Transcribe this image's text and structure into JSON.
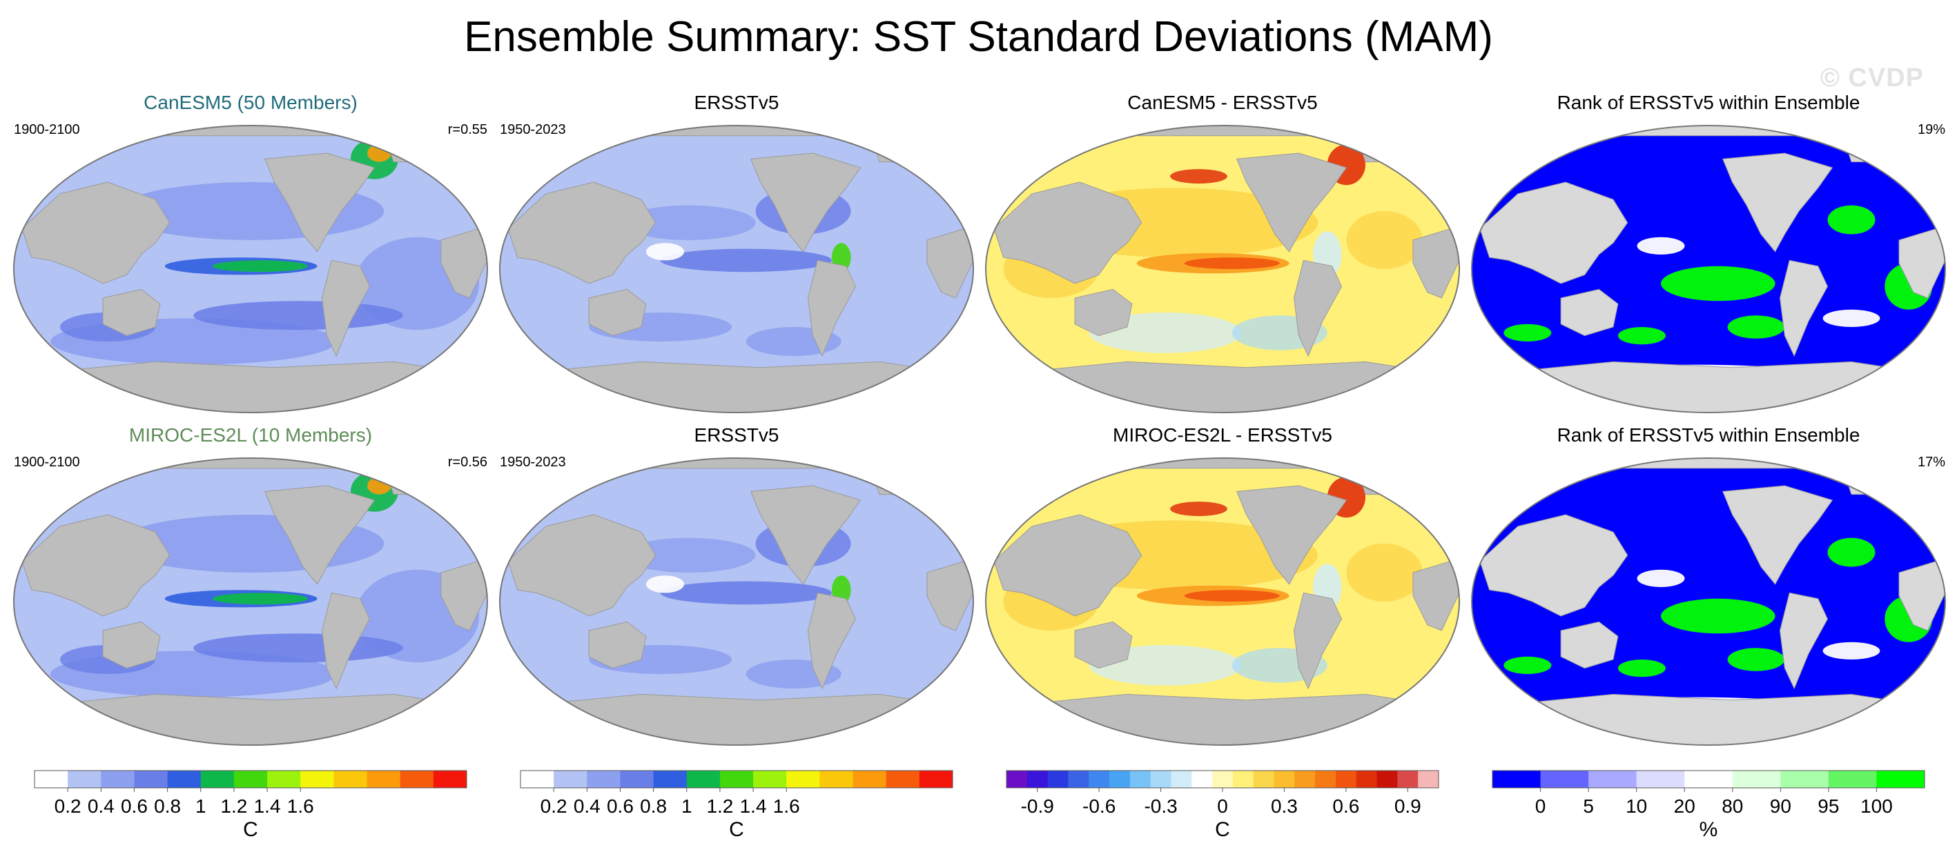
{
  "title": "Ensemble Summary: SST Standard Deviations (MAM)",
  "watermark": "© CVDP",
  "colors": {
    "land": "#bdbdbd",
    "ocean_bg": "#ffffff",
    "model1_title": "#1f6b7a",
    "model2_title": "#5e8c58",
    "std_levels": [
      "#ffffff",
      "#b3c3f3",
      "#8da0ef",
      "#6a7ee8",
      "#2f5fe0",
      "#0db74a",
      "#42d60d",
      "#9df20c",
      "#f5f50b",
      "#fbc70b",
      "#fb9b0b",
      "#f55b0b",
      "#f5160b"
    ],
    "diff_levels": [
      "#6a0fc7",
      "#3a14d9",
      "#2a3ae0",
      "#3b63e6",
      "#3f86ee",
      "#47a4f2",
      "#77c2f7",
      "#a9d9f9",
      "#d2ecfa",
      "#ffffff",
      "#fff9b8",
      "#fff07a",
      "#fcd64a",
      "#fbbc2e",
      "#f99b1c",
      "#f67a14",
      "#f0540e",
      "#e0300a",
      "#c91208",
      "#d94b4b",
      "#f5b6b6"
    ],
    "rank_levels": [
      "#0000ff",
      "#6464ff",
      "#a9a9ff",
      "#dcdcff",
      "#ffffff",
      "#dcffdc",
      "#a9ffa9",
      "#64f564",
      "#00ff00"
    ]
  },
  "panels": [
    {
      "title": "CanESM5 (50 Members)",
      "left_label": "1900-2100",
      "right_label": "r=0.55",
      "kind": "std",
      "title_color": "model1"
    },
    {
      "title": "ERSSTv5",
      "left_label": "1950-2023",
      "right_label": "",
      "kind": "std",
      "title_color": "black"
    },
    {
      "title": "CanESM5 - ERSSTv5",
      "left_label": "",
      "right_label": "",
      "kind": "diff",
      "title_color": "black"
    },
    {
      "title": "Rank of ERSSTv5 within Ensemble",
      "left_label": "",
      "right_label": "19%",
      "kind": "rank",
      "title_color": "black"
    },
    {
      "title": "MIROC-ES2L (10 Members)",
      "left_label": "1900-2100",
      "right_label": "r=0.56",
      "kind": "std",
      "title_color": "model2"
    },
    {
      "title": "ERSSTv5",
      "left_label": "1950-2023",
      "right_label": "",
      "kind": "std",
      "title_color": "black"
    },
    {
      "title": "MIROC-ES2L - ERSSTv5",
      "left_label": "",
      "right_label": "",
      "kind": "diff",
      "title_color": "black"
    },
    {
      "title": "Rank of ERSSTv5 within Ensemble",
      "left_label": "",
      "right_label": "17%",
      "kind": "rank",
      "title_color": "black"
    }
  ],
  "colorbars": [
    {
      "kind": "std",
      "unit": "C",
      "ticks": [
        "0.2",
        "0.4",
        "0.6",
        "0.8",
        "1",
        "1.2",
        "1.4",
        "1.6"
      ]
    },
    {
      "kind": "std",
      "unit": "C",
      "ticks": [
        "0.2",
        "0.4",
        "0.6",
        "0.8",
        "1",
        "1.2",
        "1.4",
        "1.6"
      ]
    },
    {
      "kind": "diff",
      "unit": "C",
      "ticks": [
        "-0.9",
        "-0.6",
        "-0.3",
        "0",
        "0.3",
        "0.6",
        "0.9"
      ]
    },
    {
      "kind": "rank",
      "unit": "%",
      "ticks": [
        "0",
        "5",
        "10",
        "20",
        "80",
        "90",
        "95",
        "100"
      ]
    }
  ],
  "chart_data": {
    "type": "heatmap",
    "title": "Ensemble Summary: SST Standard Deviations (MAM)",
    "projection": "Robinson, Pacific-centered global maps",
    "variable": "SST standard deviation, March-April-May",
    "rows": [
      {
        "model": "CanESM5 (50 Members)",
        "model_period": "1900-2100",
        "obs": "ERSSTv5",
        "obs_period": "1950-2023",
        "pattern_correlation": 0.55,
        "rank_percent": 19
      },
      {
        "model": "MIROC-ES2L (10 Members)",
        "model_period": "1900-2100",
        "obs": "ERSSTv5",
        "obs_period": "1950-2023",
        "pattern_correlation": 0.56,
        "rank_percent": 17
      }
    ],
    "std_levels_C": [
      0.1,
      0.2,
      0.3,
      0.4,
      0.5,
      0.6,
      0.7,
      0.8,
      0.9,
      1.0,
      1.1,
      1.2,
      1.3,
      1.4,
      1.5,
      1.6,
      1.7
    ],
    "std_tick_labels": [
      "0.2",
      "0.4",
      "0.6",
      "0.8",
      "1",
      "1.2",
      "1.4",
      "1.6"
    ],
    "diff_levels_C": [
      -1.0,
      -0.9,
      -0.8,
      -0.7,
      -0.6,
      -0.5,
      -0.4,
      -0.3,
      -0.2,
      -0.1,
      0,
      0.1,
      0.2,
      0.3,
      0.4,
      0.5,
      0.6,
      0.7,
      0.8,
      0.9,
      1.0
    ],
    "diff_tick_labels": [
      "-0.9",
      "-0.6",
      "-0.3",
      "0",
      "0.3",
      "0.6",
      "0.9"
    ],
    "rank_levels_percent": [
      0,
      5,
      10,
      20,
      80,
      90,
      95,
      100
    ],
    "units": {
      "std": "C",
      "diff": "C",
      "rank": "%"
    }
  }
}
